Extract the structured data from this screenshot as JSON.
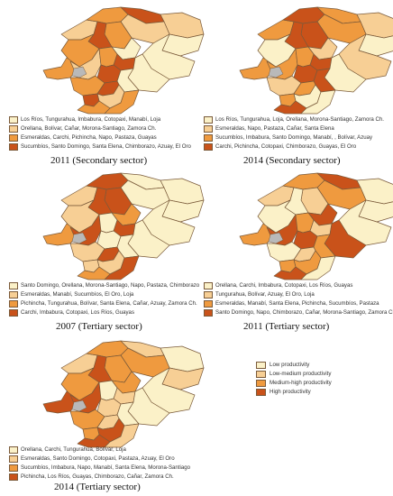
{
  "colors": {
    "low": "#fbf1c8",
    "lowmed": "#f7cf95",
    "medhigh": "#ef9a3f",
    "high": "#c9521a",
    "border": "#7a5a3a",
    "gray": "#b9b9b9"
  },
  "panels": [
    {
      "caption": "2011 (Secondary sector)",
      "region_classes": [
        "lowmed",
        "medhigh",
        "high",
        "lowmed",
        "lowmed",
        "low",
        "low",
        "medhigh",
        "high",
        "medhigh",
        "medhigh",
        "lowmed",
        "low",
        "high",
        "medhigh",
        "high",
        "low",
        "low",
        "medhigh",
        "high",
        "lowmed",
        "high",
        "medhigh",
        "medhigh"
      ],
      "legend": [
        {
          "level": "low",
          "text": "Los Ríos, Tungurahua, Imbabura, Cotopaxi, Manabí, Loja"
        },
        {
          "level": "lowmed",
          "text": "Orellana, Bolívar, Cañar, Morona-Santiago, Zamora Ch."
        },
        {
          "level": "medhigh",
          "text": "Esmeraldas, Carchi, Pichincha, Napo, Pastaza, Guayas"
        },
        {
          "level": "high",
          "text": "Sucumbíos, Santo Domingo, Santa Elena, Chimborazo, Azuay, El Oro"
        }
      ]
    },
    {
      "caption": "2014 (Secondary sector)",
      "region_classes": [
        "medhigh",
        "high",
        "medhigh",
        "lowmed",
        "medhigh",
        "low",
        "lowmed",
        "high",
        "high",
        "low",
        "medhigh",
        "medhigh",
        "lowmed",
        "high",
        "medhigh",
        "high",
        "low",
        "high",
        "lowmed",
        "medhigh",
        "low",
        "medhigh",
        "high",
        "low"
      ],
      "legend": [
        {
          "level": "low",
          "text": "Los Ríos, Tungurahua, Loja, Orellana, Morona-Santiago, Zamora Ch."
        },
        {
          "level": "lowmed",
          "text": "Esmeraldas, Napo, Pastaza, Cañar, Santa Elena"
        },
        {
          "level": "medhigh",
          "text": "Sucumbíos, Imbabura, Santo Domingo, Manabí, , Bolívar, Azuay"
        },
        {
          "level": "high",
          "text": "Carchi, Pichincha, Cotopaxi, Chimborazo, Guayas, El Oro"
        }
      ]
    },
    {
      "caption": "2007 (Tertiary sector)",
      "region_classes": [
        "lowmed",
        "high",
        "low",
        "low",
        "low",
        "low",
        "low",
        "high",
        "high",
        "lowmed",
        "medhigh",
        "high",
        "medhigh",
        "high",
        "low",
        "low",
        "low",
        "low",
        "lowmed",
        "high",
        "lowmed",
        "lowmed",
        "medhigh",
        "high"
      ],
      "legend": [
        {
          "level": "low",
          "text": "Santo Domingo, Orellana, Morona-Santiago, Napo, Pastaza, Chimborazo"
        },
        {
          "level": "lowmed",
          "text": "Esmeraldas, Manabí, Sucumbíos, El Oro, Loja"
        },
        {
          "level": "medhigh",
          "text": "Pichincha, Tungurahua, Bolívar, Santa Elena, Cañar, Azuay, Zamora Ch."
        },
        {
          "level": "high",
          "text": "Carchi, Imbabura, Cotopaxi, Los Ríos, Guayas"
        }
      ]
    },
    {
      "caption": "2011 (Tertiary sector)",
      "region_classes": [
        "lowmed",
        "medhigh",
        "high",
        "low",
        "medhigh",
        "low",
        "low",
        "lowmed",
        "low",
        "low",
        "medhigh",
        "high",
        "high",
        "lowmed",
        "medhigh",
        "high",
        "high",
        "medhigh",
        "low",
        "lowmed",
        "medhigh",
        "medhigh",
        "high",
        "low"
      ],
      "legend": [
        {
          "level": "low",
          "text": "Orellana, Carchi, Imbabura, Cotopaxi, Los Ríos, Guayas"
        },
        {
          "level": "lowmed",
          "text": "Tungurahua, Bolívar, Azuay, El Oro, Loja"
        },
        {
          "level": "medhigh",
          "text": "Esmeraldas, Manabí, Santa Elena, Pichincha, Sucumbíos, Pastaza"
        },
        {
          "level": "high",
          "text": "Santo Domingo, Napo, Chimborazo, Cañar, Morona-Santiago, Zamora Ch."
        }
      ]
    },
    {
      "caption": "2014 (Tertiary sector)",
      "region_classes": [
        "lowmed",
        "medhigh",
        "lowmed",
        "low",
        "medhigh",
        "lowmed",
        "low",
        "medhigh",
        "high",
        "medhigh",
        "high",
        "high",
        "medhigh",
        "lowmed",
        "low",
        "lowmed",
        "low",
        "low",
        "medhigh",
        "lowmed",
        "high",
        "medhigh",
        "high",
        "lowmed"
      ],
      "legend": [
        {
          "level": "low",
          "text": "Orellana, Carchi, Tungurahua, Bolívar, Loja"
        },
        {
          "level": "lowmed",
          "text": "Esmeraldas, Santo Domingo, Cotopaxi, Pastaza, Azuay, El Oro"
        },
        {
          "level": "medhigh",
          "text": "Sucumbíos, Imbabura, Napo, Manabí, Santa Elena, Morona-Santiago"
        },
        {
          "level": "high",
          "text": "Pichincha, Los Ríos, Guayas, Chimborazo, Cañar, Zamora Ch."
        }
      ]
    }
  ],
  "global_legend": [
    {
      "level": "low",
      "text": "Low productivity"
    },
    {
      "level": "lowmed",
      "text": "Low-medium productivity"
    },
    {
      "level": "medhigh",
      "text": "Medium-high productivity"
    },
    {
      "level": "high",
      "text": "High productivity"
    }
  ]
}
